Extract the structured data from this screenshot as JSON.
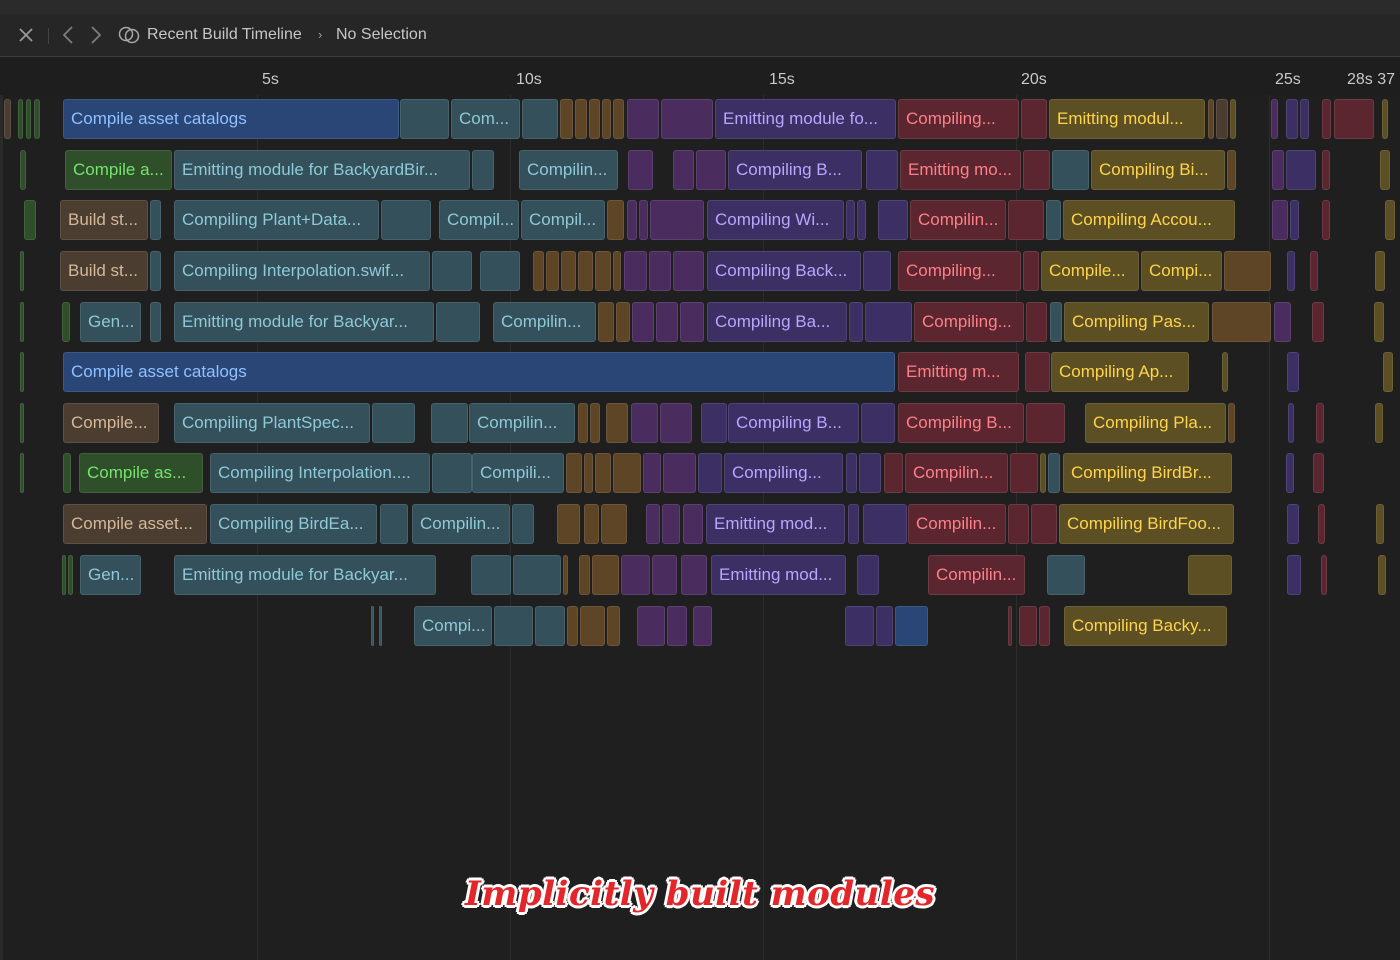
{
  "toolbar": {
    "close_icon": "close-icon",
    "back_icon": "chevron-left-icon",
    "forward_icon": "chevron-right-icon",
    "scheme_icon": "build-timeline-icon",
    "breadcrumb_title": "Recent Build Timeline",
    "breadcrumb_separator": "›",
    "breadcrumb_selection": "No Selection"
  },
  "ruler": {
    "ticks": [
      "5s",
      "10s",
      "15s",
      "20s",
      "25s",
      "28s 37"
    ]
  },
  "category_colors": {
    "teal": "#34505a",
    "blue": "#294676",
    "purple": "#3c2f63",
    "violet": "#4a2c5e",
    "red": "#5c2630",
    "gold": "#5b4f23",
    "orange": "#5d4526",
    "brown": "#4c3d31",
    "green": "#2f4f2b"
  },
  "rows": [
    [
      "Compile asset catalogs",
      "Com...",
      "Emitting module fo...",
      "Compiling...",
      "Emitting modul..."
    ],
    [
      "Compile a...",
      "Emitting module for BackyardBir...",
      "Compilin...",
      "Compiling B...",
      "Emitting mo...",
      "Compiling Bi..."
    ],
    [
      "Build st...",
      "Compiling Plant+Data...",
      "Compil...",
      "Compil...",
      "Compiling Wi...",
      "Compilin...",
      "Compiling Accou..."
    ],
    [
      "Build st...",
      "Compiling Interpolation.swif...",
      "Compiling Back...",
      "Compiling...",
      "Compile...",
      "Compi..."
    ],
    [
      "Gen...",
      "Emitting module for Backyar...",
      "Compilin...",
      "Compiling Ba...",
      "Compiling...",
      "Compiling Pas..."
    ],
    [
      "Compile asset catalogs",
      "Emitting m...",
      "Compiling Ap..."
    ],
    [
      "Compile...",
      "Compiling PlantSpec...",
      "Compilin...",
      "Compiling B...",
      "Compiling B...",
      "Compiling Pla..."
    ],
    [
      "Compile as...",
      "Compiling Interpolation....",
      "Compili...",
      "Compiling...",
      "Compilin...",
      "Compiling BirdBr..."
    ],
    [
      "Compile asset...",
      "Compiling BirdEa...",
      "Compilin...",
      "Emitting mod...",
      "Compilin...",
      "Compiling BirdFoo..."
    ],
    [
      "Gen...",
      "Emitting module for Backyar...",
      "Emitting mod...",
      "Compilin..."
    ],
    [
      "Compi...",
      "Compiling Backy..."
    ]
  ],
  "caption": "Implicitly built modules"
}
